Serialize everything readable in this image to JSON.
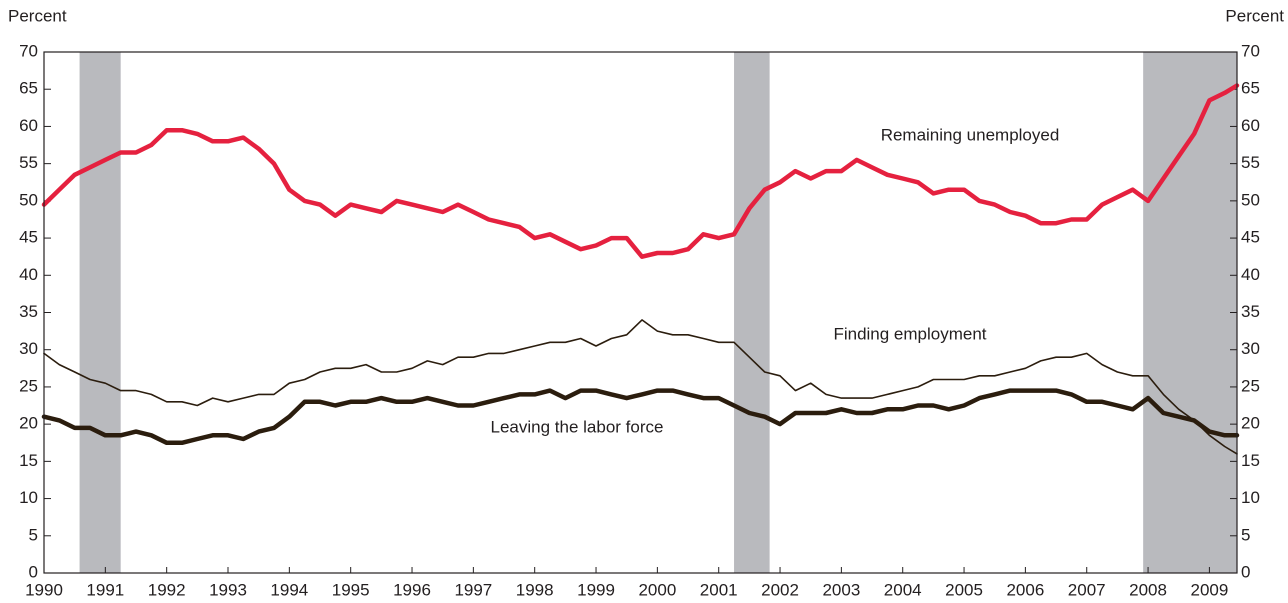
{
  "chart_data": {
    "type": "line",
    "y_label": "Percent",
    "y2_label": "Percent",
    "xlim": [
      1990,
      2009.45
    ],
    "xticks": [
      1990,
      1991,
      1992,
      1993,
      1994,
      1995,
      1996,
      1997,
      1998,
      1999,
      2000,
      2001,
      2002,
      2003,
      2004,
      2005,
      2006,
      2007,
      2008,
      2009
    ],
    "ylim": [
      0,
      70
    ],
    "yticks": [
      0,
      5,
      10,
      15,
      20,
      25,
      30,
      35,
      40,
      45,
      50,
      55,
      60,
      65,
      70
    ],
    "y2lim": [
      0,
      70
    ],
    "y2ticks": [
      0,
      5,
      10,
      15,
      20,
      25,
      30,
      35,
      40,
      45,
      50,
      55,
      60,
      65,
      70
    ],
    "shaded_regions": [
      [
        1990.58,
        1991.25
      ],
      [
        2001.25,
        2001.83
      ],
      [
        2007.92,
        2009.45
      ]
    ],
    "shade_color": "#b9babe",
    "x": [
      1990,
      1990.25,
      1990.5,
      1990.75,
      1991,
      1991.25,
      1991.5,
      1991.75,
      1992,
      1992.25,
      1992.5,
      1992.75,
      1993,
      1993.25,
      1993.5,
      1993.75,
      1994,
      1994.25,
      1994.5,
      1994.75,
      1995,
      1995.25,
      1995.5,
      1995.75,
      1996,
      1996.25,
      1996.5,
      1996.75,
      1997,
      1997.25,
      1997.5,
      1997.75,
      1998,
      1998.25,
      1998.5,
      1998.75,
      1999,
      1999.25,
      1999.5,
      1999.75,
      2000,
      2000.25,
      2000.5,
      2000.75,
      2001,
      2001.25,
      2001.5,
      2001.75,
      2002,
      2002.25,
      2002.5,
      2002.75,
      2003,
      2003.25,
      2003.5,
      2003.75,
      2004,
      2004.25,
      2004.5,
      2004.75,
      2005,
      2005.25,
      2005.5,
      2005.75,
      2006,
      2006.25,
      2006.5,
      2006.75,
      2007,
      2007.25,
      2007.5,
      2007.75,
      2008,
      2008.25,
      2008.5,
      2008.75,
      2009,
      2009.25,
      2009.45
    ],
    "series": [
      {
        "name": "Remaining unemployed",
        "color": "#e5213f",
        "width": 4.5,
        "values": [
          49.5,
          51.5,
          53.5,
          54.5,
          55.5,
          56.5,
          56.5,
          57.5,
          59.5,
          59.5,
          59,
          58,
          58,
          58.5,
          57,
          55,
          51.5,
          50,
          49.5,
          48,
          49.5,
          49,
          48.5,
          50,
          49.5,
          49,
          48.5,
          49.5,
          48.5,
          47.5,
          47,
          46.5,
          45,
          45.5,
          44.5,
          43.5,
          44,
          45,
          45,
          42.5,
          43,
          43,
          43.5,
          45.5,
          45,
          45.5,
          49,
          51.5,
          52.5,
          54,
          53,
          54,
          54,
          55.5,
          54.5,
          53.5,
          53,
          52.5,
          51,
          51.5,
          51.5,
          50,
          49.5,
          48.5,
          48,
          47,
          47,
          47.5,
          47.5,
          49.5,
          50.5,
          51.5,
          50,
          53,
          56,
          59,
          63.5,
          64.5,
          65.5
        ]
      },
      {
        "name": "Finding employment",
        "color": "#2b1d0e",
        "width": 1.6,
        "values": [
          29.5,
          28,
          27,
          26,
          25.5,
          24.5,
          24.5,
          24,
          23,
          23,
          22.5,
          23.5,
          23,
          23.5,
          24,
          24,
          25.5,
          26,
          27,
          27.5,
          27.5,
          28,
          27,
          27,
          27.5,
          28.5,
          28,
          29,
          29,
          29.5,
          29.5,
          30,
          30.5,
          31,
          31,
          31.5,
          30.5,
          31.5,
          32,
          34,
          32.5,
          32,
          32,
          31.5,
          31,
          31,
          29,
          27,
          26.5,
          24.5,
          25.5,
          24,
          23.5,
          23.5,
          23.5,
          24,
          24.5,
          25,
          26,
          26,
          26,
          26.5,
          26.5,
          27,
          27.5,
          28.5,
          29,
          29,
          29.5,
          28,
          27,
          26.5,
          26.5,
          24,
          22,
          20.5,
          18.5,
          17,
          16
        ]
      },
      {
        "name": "Leaving the labor force",
        "color": "#2b1d0e",
        "width": 4.5,
        "values": [
          21,
          20.5,
          19.5,
          19.5,
          18.5,
          18.5,
          19,
          18.5,
          17.5,
          17.5,
          18,
          18.5,
          18.5,
          18,
          19,
          19.5,
          21,
          23,
          23,
          22.5,
          23,
          23,
          23.5,
          23,
          23,
          23.5,
          23,
          22.5,
          22.5,
          23,
          23.5,
          24,
          24,
          24.5,
          23.5,
          24.5,
          24.5,
          24,
          23.5,
          24,
          24.5,
          24.5,
          24,
          23.5,
          23.5,
          22.5,
          21.5,
          21,
          20,
          21.5,
          21.5,
          21.5,
          22,
          21.5,
          21.5,
          22,
          22,
          22.5,
          22.5,
          22,
          22.5,
          23.5,
          24,
          24.5,
          24.5,
          24.5,
          24.5,
          24,
          23,
          23,
          22.5,
          22,
          23.5,
          21.5,
          21,
          20.5,
          19,
          18.5,
          18.5
        ]
      }
    ]
  }
}
